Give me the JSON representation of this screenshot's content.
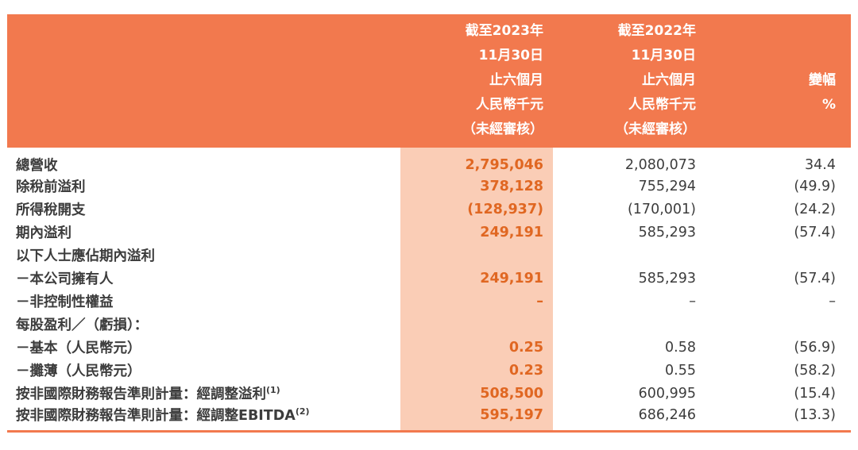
{
  "colors": {
    "header_bg": "#F2794E",
    "highlight_bg": "#FACDB6",
    "accent_text": "#E06722",
    "body_text": "#3C3C3C"
  },
  "header": {
    "col2023": [
      "截至2023年",
      "11月30日",
      "止六個月",
      "人民幣千元",
      "（未經審核）"
    ],
    "col2022": [
      "截至2022年",
      "11月30日",
      "止六個月",
      "人民幣千元",
      "（未經審核）"
    ],
    "change": [
      "變幅",
      "%"
    ]
  },
  "rows": [
    {
      "label": "總營收",
      "v2023": "2,795,046",
      "v2022": "2,080,073",
      "chg": "34.4"
    },
    {
      "label": "除稅前溢利",
      "v2023": "378,128",
      "v2022": "755,294",
      "chg": "(49.9)"
    },
    {
      "label": "所得稅開支",
      "v2023": "(128,937)",
      "v2022": "(170,001)",
      "chg": "(24.2)"
    },
    {
      "label": "期內溢利",
      "v2023": "249,191",
      "v2022": "585,293",
      "chg": "(57.4)"
    },
    {
      "label": "以下人士應佔期內溢利",
      "v2023": "",
      "v2022": "",
      "chg": ""
    },
    {
      "label": "－本公司擁有人",
      "v2023": "249,191",
      "v2022": "585,293",
      "chg": "(57.4)"
    },
    {
      "label": "－非控制性權益",
      "v2023": "–",
      "v2022": "–",
      "chg": "–"
    },
    {
      "label": "每股盈利／（虧損）：",
      "v2023": "",
      "v2022": "",
      "chg": ""
    },
    {
      "label": "－基本（人民幣元）",
      "v2023": "0.25",
      "v2022": "0.58",
      "chg": "(56.9)"
    },
    {
      "label": "－攤薄（人民幣元）",
      "v2023": "0.23",
      "v2022": "0.55",
      "chg": "(58.2)"
    },
    {
      "label": "按非國際財務報告準則計量：經調整溢利",
      "sup": "(1)",
      "v2023": "508,500",
      "v2022": "600,995",
      "chg": "(15.4)"
    },
    {
      "label": "按非國際財務報告準則計量：經調整EBITDA",
      "sup": "(2)",
      "v2023": "595,197",
      "v2022": "686,246",
      "chg": "(13.3)"
    }
  ]
}
